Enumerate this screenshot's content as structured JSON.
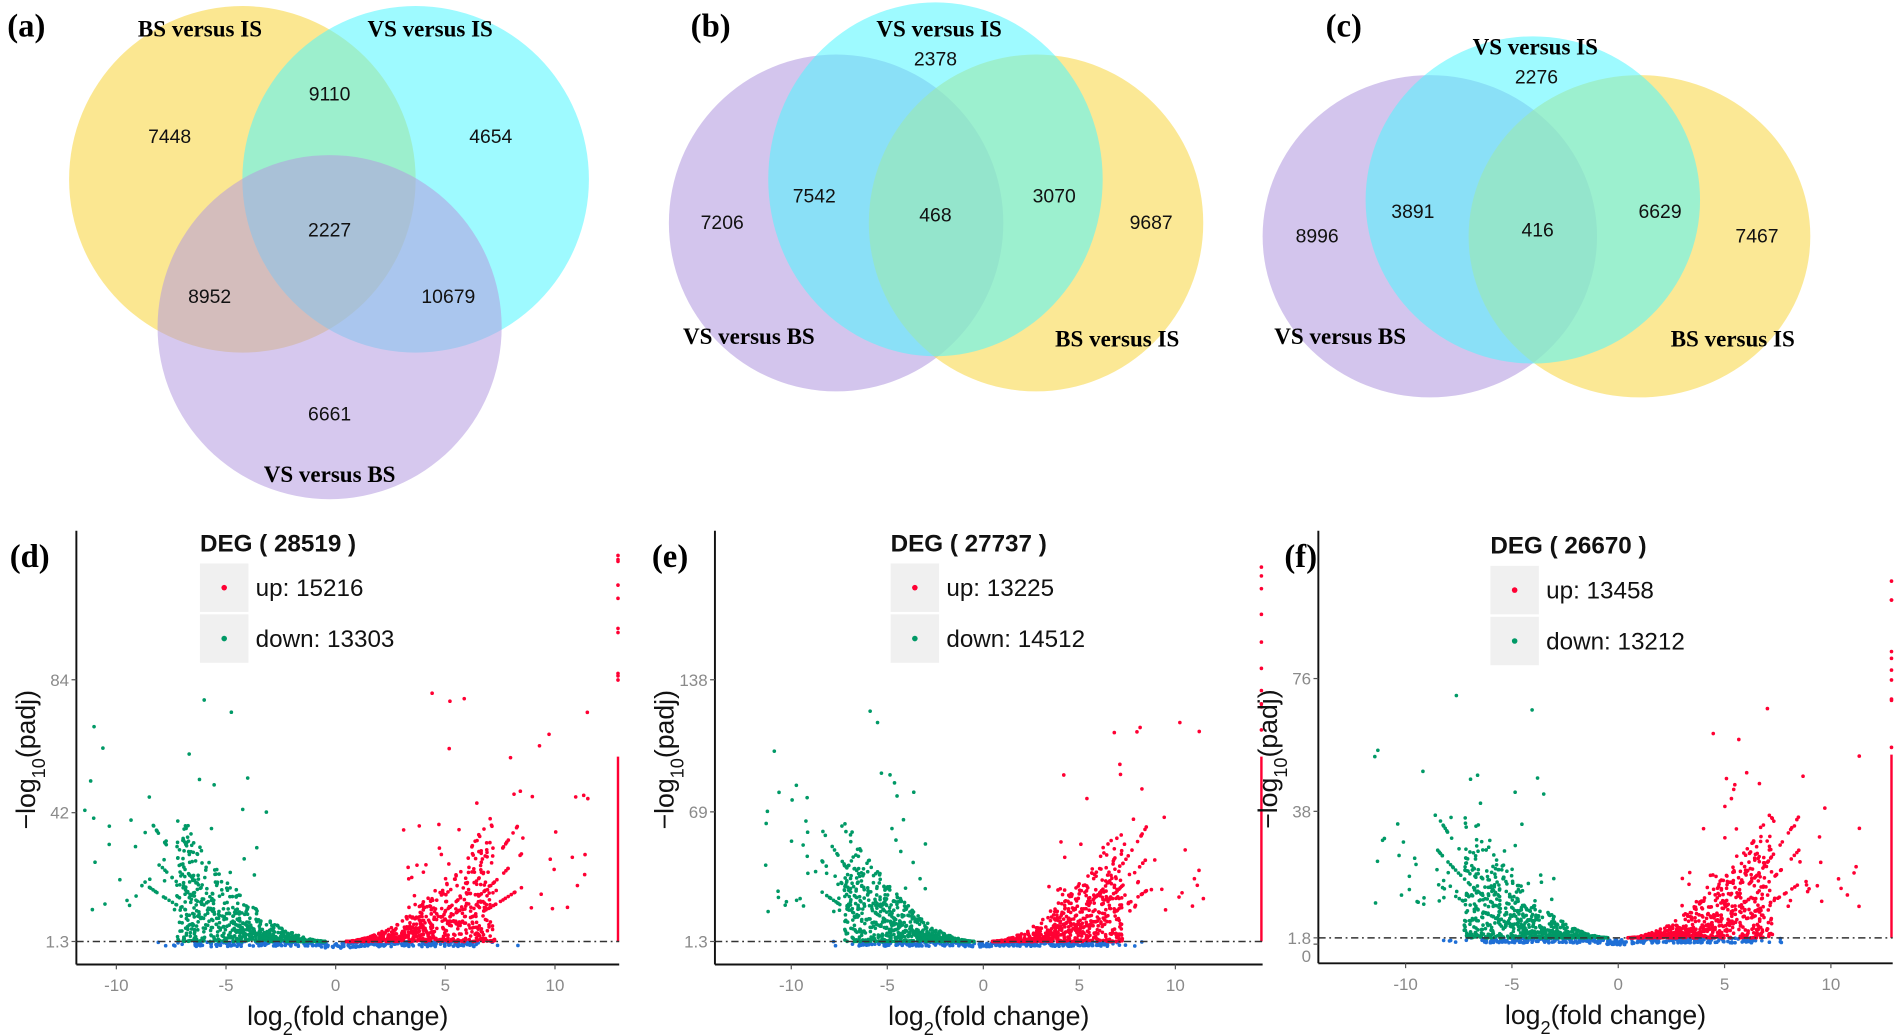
{
  "chart_data": [
    {
      "type": "venn",
      "panel": "(a)",
      "sets": [
        "BS versus IS",
        "VS versus IS",
        "VS versus BS"
      ],
      "regions": {
        "BS_only": 7448,
        "VS_IS_only": 4654,
        "VS_BS_only": 6661,
        "BS_and_VSIS": 9110,
        "BS_and_VSBS": 8952,
        "VSIS_and_VSBS": 10679,
        "all": 2227
      }
    },
    {
      "type": "venn",
      "panel": "(b)",
      "sets": [
        "VS versus IS",
        "VS versus BS",
        "BS versus IS"
      ],
      "regions": {
        "VSIS_only": 2378,
        "VSBS_only": 7206,
        "BSIS_only": 9687,
        "VSIS_and_VSBS": 7542,
        "VSIS_and_BSIS": 3070,
        "all": 468
      }
    },
    {
      "type": "venn",
      "panel": "(c)",
      "sets": [
        "VS versus IS",
        "VS versus BS",
        "BS versus IS"
      ],
      "regions": {
        "VSIS_only": 2276,
        "VSBS_only": 8996,
        "BSIS_only": 7467,
        "VSIS_and_VSBS": 3891,
        "VSIS_and_BSIS": 6629,
        "all": 416
      }
    },
    {
      "type": "scatter",
      "panel": "(d)",
      "title": "DEG ( 28519 )",
      "legend": [
        {
          "label": "up: 15216",
          "color": "#ff0033"
        },
        {
          "label": "down: 13303",
          "color": "#009966"
        }
      ],
      "up": 15216,
      "down": 13303,
      "xlabel": {
        "prefix": "log",
        "sub": "2",
        "suffix": "(fold change)"
      },
      "ylabel": {
        "prefix": "−log",
        "sub": "10",
        "suffix": "(padj)"
      },
      "x_ticks": [
        "-10",
        "-5",
        "0",
        "5",
        "10"
      ],
      "x_tick_values": [
        -10,
        -5,
        0,
        5,
        10
      ],
      "y_ticks": [
        "1.3",
        "42",
        "84"
      ],
      "y_tick_values": [
        1.3,
        42,
        84
      ],
      "threshold": 1.3,
      "xlim": [
        -11.8,
        12.9
      ],
      "ylim": [
        -6,
        131
      ],
      "legend_position": "top-center"
    },
    {
      "type": "scatter",
      "panel": "(e)",
      "title": "DEG ( 27737 )",
      "legend": [
        {
          "label": "up: 13225",
          "color": "#ff0033"
        },
        {
          "label": "down: 14512",
          "color": "#009966"
        }
      ],
      "up": 13225,
      "down": 14512,
      "xlabel": {
        "prefix": "log",
        "sub": "2",
        "suffix": "(fold change)"
      },
      "ylabel": {
        "prefix": "−log",
        "sub": "10",
        "suffix": "(padj)"
      },
      "x_ticks": [
        "-10",
        "-5",
        "0",
        "5",
        "10"
      ],
      "x_tick_values": [
        -10,
        -5,
        0,
        5,
        10
      ],
      "y_ticks": [
        "1.3",
        "69",
        "138"
      ],
      "y_tick_values": [
        1.3,
        69,
        138
      ],
      "threshold": 1.3,
      "xlim": [
        -14,
        14.6
      ],
      "ylim": [
        -11,
        215
      ],
      "legend_position": "top-center"
    },
    {
      "type": "scatter",
      "panel": "(f)",
      "title": "DEG ( 26670 )",
      "legend": [
        {
          "label": "up: 13458",
          "color": "#ff0033"
        },
        {
          "label": "down: 13212",
          "color": "#009966"
        }
      ],
      "up": 13458,
      "down": 13212,
      "xlabel": {
        "prefix": "log",
        "sub": "2",
        "suffix": "(fold change)"
      },
      "ylabel": {
        "prefix": "−log",
        "sub": "10",
        "suffix": "(padj)"
      },
      "x_ticks": [
        "-10",
        "-5",
        "0",
        "5",
        "10"
      ],
      "x_tick_values": [
        -10,
        -5,
        0,
        5,
        10
      ],
      "y_ticks": [
        "0",
        "1.8",
        "38",
        "76"
      ],
      "y_tick_values": [
        0,
        1.8,
        38,
        76
      ],
      "threshold": 1.8,
      "xlim": [
        -12.9,
        12.8
      ],
      "ylim": [
        -5,
        120
      ],
      "legend_position": "top-center"
    }
  ],
  "colors": {
    "up": "#ff0033",
    "down": "#009966",
    "not_significant": "#1f6fd6",
    "venn_yellow": "#f9d84e",
    "venn_cyan": "#4ef6ff",
    "venn_purple": "#b49be0"
  }
}
